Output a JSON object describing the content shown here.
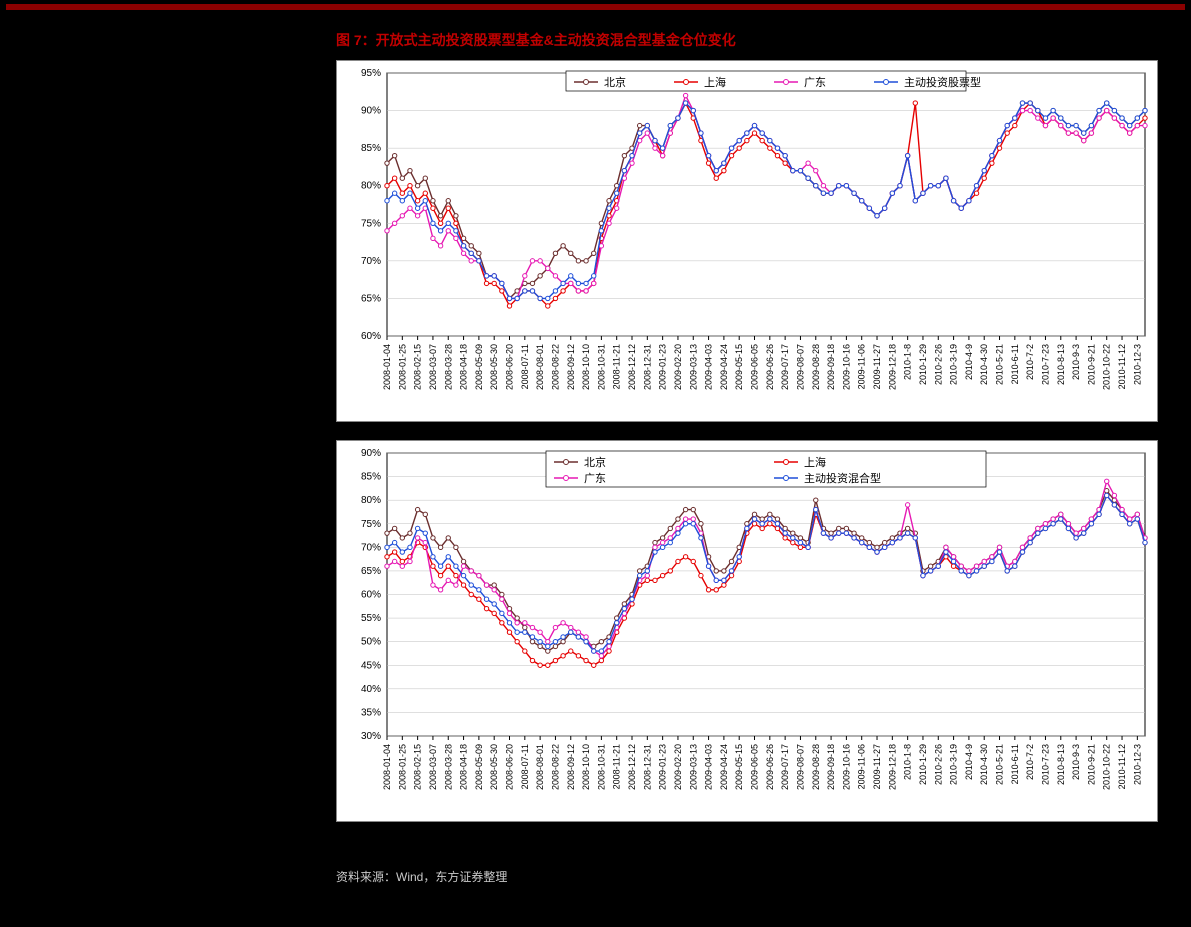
{
  "title": "图 7：开放式主动投资股票型基金&主动投资混合型基金仓位变化",
  "source": "资料来源：Wind，东方证券整理",
  "colors": {
    "background": "#000000",
    "chart_bg": "#ffffff",
    "title": "#c00000",
    "source": "#c9c9c9",
    "red_bar": "#8b0000",
    "grid": "#bfbfbf",
    "axis": "#000000",
    "series": {
      "beijing": "#6b2e2e",
      "shanghai": "#e60000",
      "guangdong": "#e619b3",
      "active_equity": "#1f4fd9",
      "active_mixed": "#1f4fd9"
    }
  },
  "x_labels": [
    "2008-01-04",
    "2008-01-25",
    "2008-02-15",
    "2008-03-07",
    "2008-03-28",
    "2008-04-18",
    "2008-05-09",
    "2008-05-30",
    "2008-06-20",
    "2008-07-11",
    "2008-08-01",
    "2008-08-22",
    "2008-09-12",
    "2008-10-10",
    "2008-10-31",
    "2008-11-21",
    "2008-12-12",
    "2008-12-31",
    "2009-01-23",
    "2009-02-20",
    "2009-03-13",
    "2009-04-03",
    "2009-04-24",
    "2009-05-15",
    "2009-06-05",
    "2009-06-26",
    "2009-07-17",
    "2009-08-07",
    "2009-08-28",
    "2009-09-18",
    "2009-10-16",
    "2009-11-06",
    "2009-11-27",
    "2009-12-18",
    "2010-1-8",
    "2010-1-29",
    "2010-2-26",
    "2010-3-19",
    "2010-4-9",
    "2010-4-30",
    "2010-5-21",
    "2010-6-11",
    "2010-7-2",
    "2010-7-23",
    "2010-8-13",
    "2010-9-3",
    "2010-9-21",
    "2010-10-22",
    "2010-11-12",
    "2010-12-3"
  ],
  "chart1": {
    "type": "line",
    "ylim": [
      60,
      95
    ],
    "ytick_step": 5,
    "y_format": "percent",
    "legend": [
      "北京",
      "上海",
      "广东",
      "主动投资股票型"
    ],
    "legend_keys": [
      "beijing",
      "shanghai",
      "guangdong",
      "active_equity"
    ],
    "marker": "circle",
    "marker_size": 2.2,
    "line_width": 1.4,
    "grid": true,
    "series": {
      "beijing": [
        83,
        84,
        81,
        82,
        80,
        81,
        78,
        76,
        78,
        76,
        73,
        72,
        71,
        68,
        68,
        67,
        65,
        66,
        67,
        67,
        68,
        69,
        71,
        72,
        71,
        70,
        70,
        71,
        75,
        78,
        80,
        84,
        85,
        88,
        88,
        86,
        85,
        88,
        89,
        91,
        90,
        87,
        84,
        82,
        83,
        85,
        86,
        87,
        88,
        87,
        86,
        85,
        84,
        82,
        82,
        81,
        80,
        79,
        79,
        80,
        80,
        79,
        78,
        77,
        76,
        77,
        79,
        80,
        84,
        78,
        79,
        80,
        80,
        81,
        78,
        77,
        78,
        80,
        82,
        84,
        86,
        88,
        89,
        91,
        91,
        90,
        89,
        90,
        89,
        88,
        88,
        87,
        88,
        90,
        91,
        90,
        89,
        88,
        89,
        90
      ],
      "shanghai": [
        80,
        81,
        79,
        80,
        78,
        79,
        77,
        75,
        77,
        75,
        72,
        71,
        70,
        67,
        67,
        66,
        64,
        65,
        66,
        66,
        65,
        64,
        65,
        66,
        67,
        66,
        66,
        67,
        73,
        76,
        78,
        82,
        84,
        87,
        88,
        86,
        84,
        87,
        89,
        91,
        89,
        86,
        83,
        81,
        82,
        84,
        85,
        86,
        87,
        86,
        85,
        84,
        83,
        82,
        82,
        81,
        80,
        79,
        79,
        80,
        80,
        79,
        78,
        77,
        76,
        77,
        79,
        80,
        84,
        91,
        79,
        80,
        80,
        81,
        78,
        77,
        78,
        79,
        81,
        83,
        85,
        87,
        88,
        90,
        91,
        90,
        88,
        89,
        88,
        87,
        87,
        86,
        87,
        89,
        90,
        89,
        88,
        87,
        88,
        89
      ],
      "guangdong": [
        74,
        75,
        76,
        77,
        76,
        77,
        73,
        72,
        74,
        73,
        71,
        70,
        70,
        68,
        68,
        67,
        65,
        65,
        68,
        70,
        70,
        69,
        68,
        67,
        67,
        66,
        66,
        67,
        72,
        75,
        77,
        81,
        83,
        86,
        87,
        85,
        84,
        87,
        89,
        92,
        90,
        87,
        84,
        82,
        83,
        85,
        86,
        87,
        88,
        87,
        86,
        85,
        84,
        82,
        82,
        83,
        82,
        80,
        79,
        80,
        80,
        79,
        78,
        77,
        76,
        77,
        79,
        80,
        84,
        78,
        79,
        80,
        80,
        81,
        78,
        77,
        78,
        80,
        82,
        84,
        86,
        88,
        89,
        90,
        90,
        89,
        88,
        89,
        88,
        87,
        87,
        86,
        87,
        89,
        90,
        89,
        88,
        87,
        88,
        88
      ],
      "active_equity": [
        78,
        79,
        78,
        79,
        77,
        78,
        75,
        74,
        75,
        74,
        72,
        71,
        70,
        68,
        68,
        67,
        65,
        65,
        66,
        66,
        65,
        65,
        66,
        67,
        68,
        67,
        67,
        68,
        74,
        77,
        79,
        82,
        84,
        87,
        88,
        86,
        85,
        88,
        89,
        91,
        90,
        87,
        84,
        82,
        83,
        85,
        86,
        87,
        88,
        87,
        86,
        85,
        84,
        82,
        82,
        81,
        80,
        79,
        79,
        80,
        80,
        79,
        78,
        77,
        76,
        77,
        79,
        80,
        84,
        78,
        79,
        80,
        80,
        81,
        78,
        77,
        78,
        80,
        82,
        84,
        86,
        88,
        89,
        91,
        91,
        90,
        89,
        90,
        89,
        88,
        88,
        87,
        88,
        90,
        91,
        90,
        89,
        88,
        89,
        90
      ]
    }
  },
  "chart2": {
    "type": "line",
    "ylim": [
      30,
      90
    ],
    "ytick_step": 5,
    "y_format": "percent",
    "legend": [
      "北京",
      "上海",
      "广东",
      "主动投资混合型"
    ],
    "legend_keys": [
      "beijing",
      "shanghai",
      "guangdong",
      "active_mixed"
    ],
    "marker": "circle",
    "marker_size": 2.2,
    "line_width": 1.4,
    "grid": true,
    "series": {
      "beijing": [
        73,
        74,
        72,
        73,
        78,
        77,
        72,
        70,
        72,
        70,
        67,
        65,
        64,
        62,
        62,
        60,
        57,
        55,
        53,
        50,
        49,
        48,
        49,
        50,
        52,
        51,
        50,
        49,
        50,
        51,
        55,
        58,
        60,
        65,
        66,
        71,
        72,
        74,
        76,
        78,
        78,
        75,
        68,
        65,
        65,
        67,
        70,
        75,
        77,
        76,
        77,
        76,
        74,
        73,
        72,
        71,
        80,
        74,
        73,
        74,
        74,
        73,
        72,
        71,
        70,
        71,
        72,
        73,
        74,
        73,
        65,
        66,
        67,
        70,
        68,
        66,
        65,
        66,
        67,
        68,
        70,
        66,
        67,
        70,
        72,
        74,
        75,
        76,
        77,
        75,
        73,
        74,
        76,
        78,
        82,
        80,
        78,
        76,
        77,
        72
      ],
      "shanghai": [
        68,
        69,
        67,
        68,
        71,
        70,
        66,
        64,
        66,
        64,
        62,
        60,
        59,
        57,
        56,
        54,
        52,
        50,
        48,
        46,
        45,
        45,
        46,
        47,
        48,
        47,
        46,
        45,
        46,
        48,
        52,
        55,
        58,
        62,
        63,
        63,
        64,
        65,
        67,
        68,
        67,
        64,
        61,
        61,
        62,
        64,
        67,
        73,
        75,
        74,
        75,
        74,
        72,
        71,
        70,
        70,
        77,
        73,
        72,
        73,
        73,
        72,
        71,
        70,
        69,
        70,
        71,
        72,
        73,
        72,
        64,
        65,
        66,
        68,
        66,
        65,
        64,
        65,
        66,
        67,
        69,
        65,
        66,
        69,
        71,
        73,
        74,
        75,
        76,
        74,
        72,
        73,
        75,
        77,
        81,
        79,
        77,
        75,
        76,
        71
      ],
      "guangdong": [
        66,
        67,
        66,
        67,
        72,
        71,
        62,
        61,
        63,
        62,
        66,
        65,
        64,
        62,
        61,
        59,
        56,
        54,
        54,
        53,
        52,
        50,
        53,
        54,
        53,
        52,
        51,
        48,
        47,
        49,
        53,
        56,
        59,
        63,
        64,
        70,
        71,
        72,
        74,
        76,
        76,
        73,
        66,
        63,
        63,
        65,
        68,
        74,
        76,
        75,
        76,
        75,
        73,
        72,
        71,
        70,
        78,
        73,
        72,
        73,
        73,
        72,
        71,
        70,
        69,
        70,
        71,
        72,
        79,
        72,
        64,
        65,
        66,
        70,
        68,
        66,
        65,
        66,
        67,
        68,
        70,
        66,
        67,
        70,
        72,
        74,
        75,
        76,
        77,
        75,
        73,
        74,
        76,
        78,
        84,
        81,
        78,
        76,
        77,
        72
      ],
      "active_mixed": [
        70,
        71,
        69,
        70,
        74,
        73,
        68,
        66,
        68,
        66,
        64,
        62,
        61,
        59,
        58,
        56,
        54,
        52,
        52,
        51,
        50,
        49,
        50,
        51,
        52,
        51,
        50,
        48,
        48,
        50,
        54,
        57,
        59,
        64,
        65,
        69,
        70,
        71,
        73,
        75,
        75,
        72,
        66,
        63,
        63,
        65,
        68,
        74,
        76,
        75,
        76,
        75,
        73,
        72,
        71,
        70,
        78,
        73,
        72,
        73,
        73,
        72,
        71,
        70,
        69,
        70,
        71,
        72,
        73,
        72,
        64,
        65,
        66,
        69,
        67,
        65,
        64,
        65,
        66,
        67,
        69,
        65,
        66,
        69,
        71,
        73,
        74,
        75,
        76,
        74,
        72,
        73,
        75,
        77,
        81,
        79,
        77,
        75,
        76,
        71
      ]
    }
  }
}
